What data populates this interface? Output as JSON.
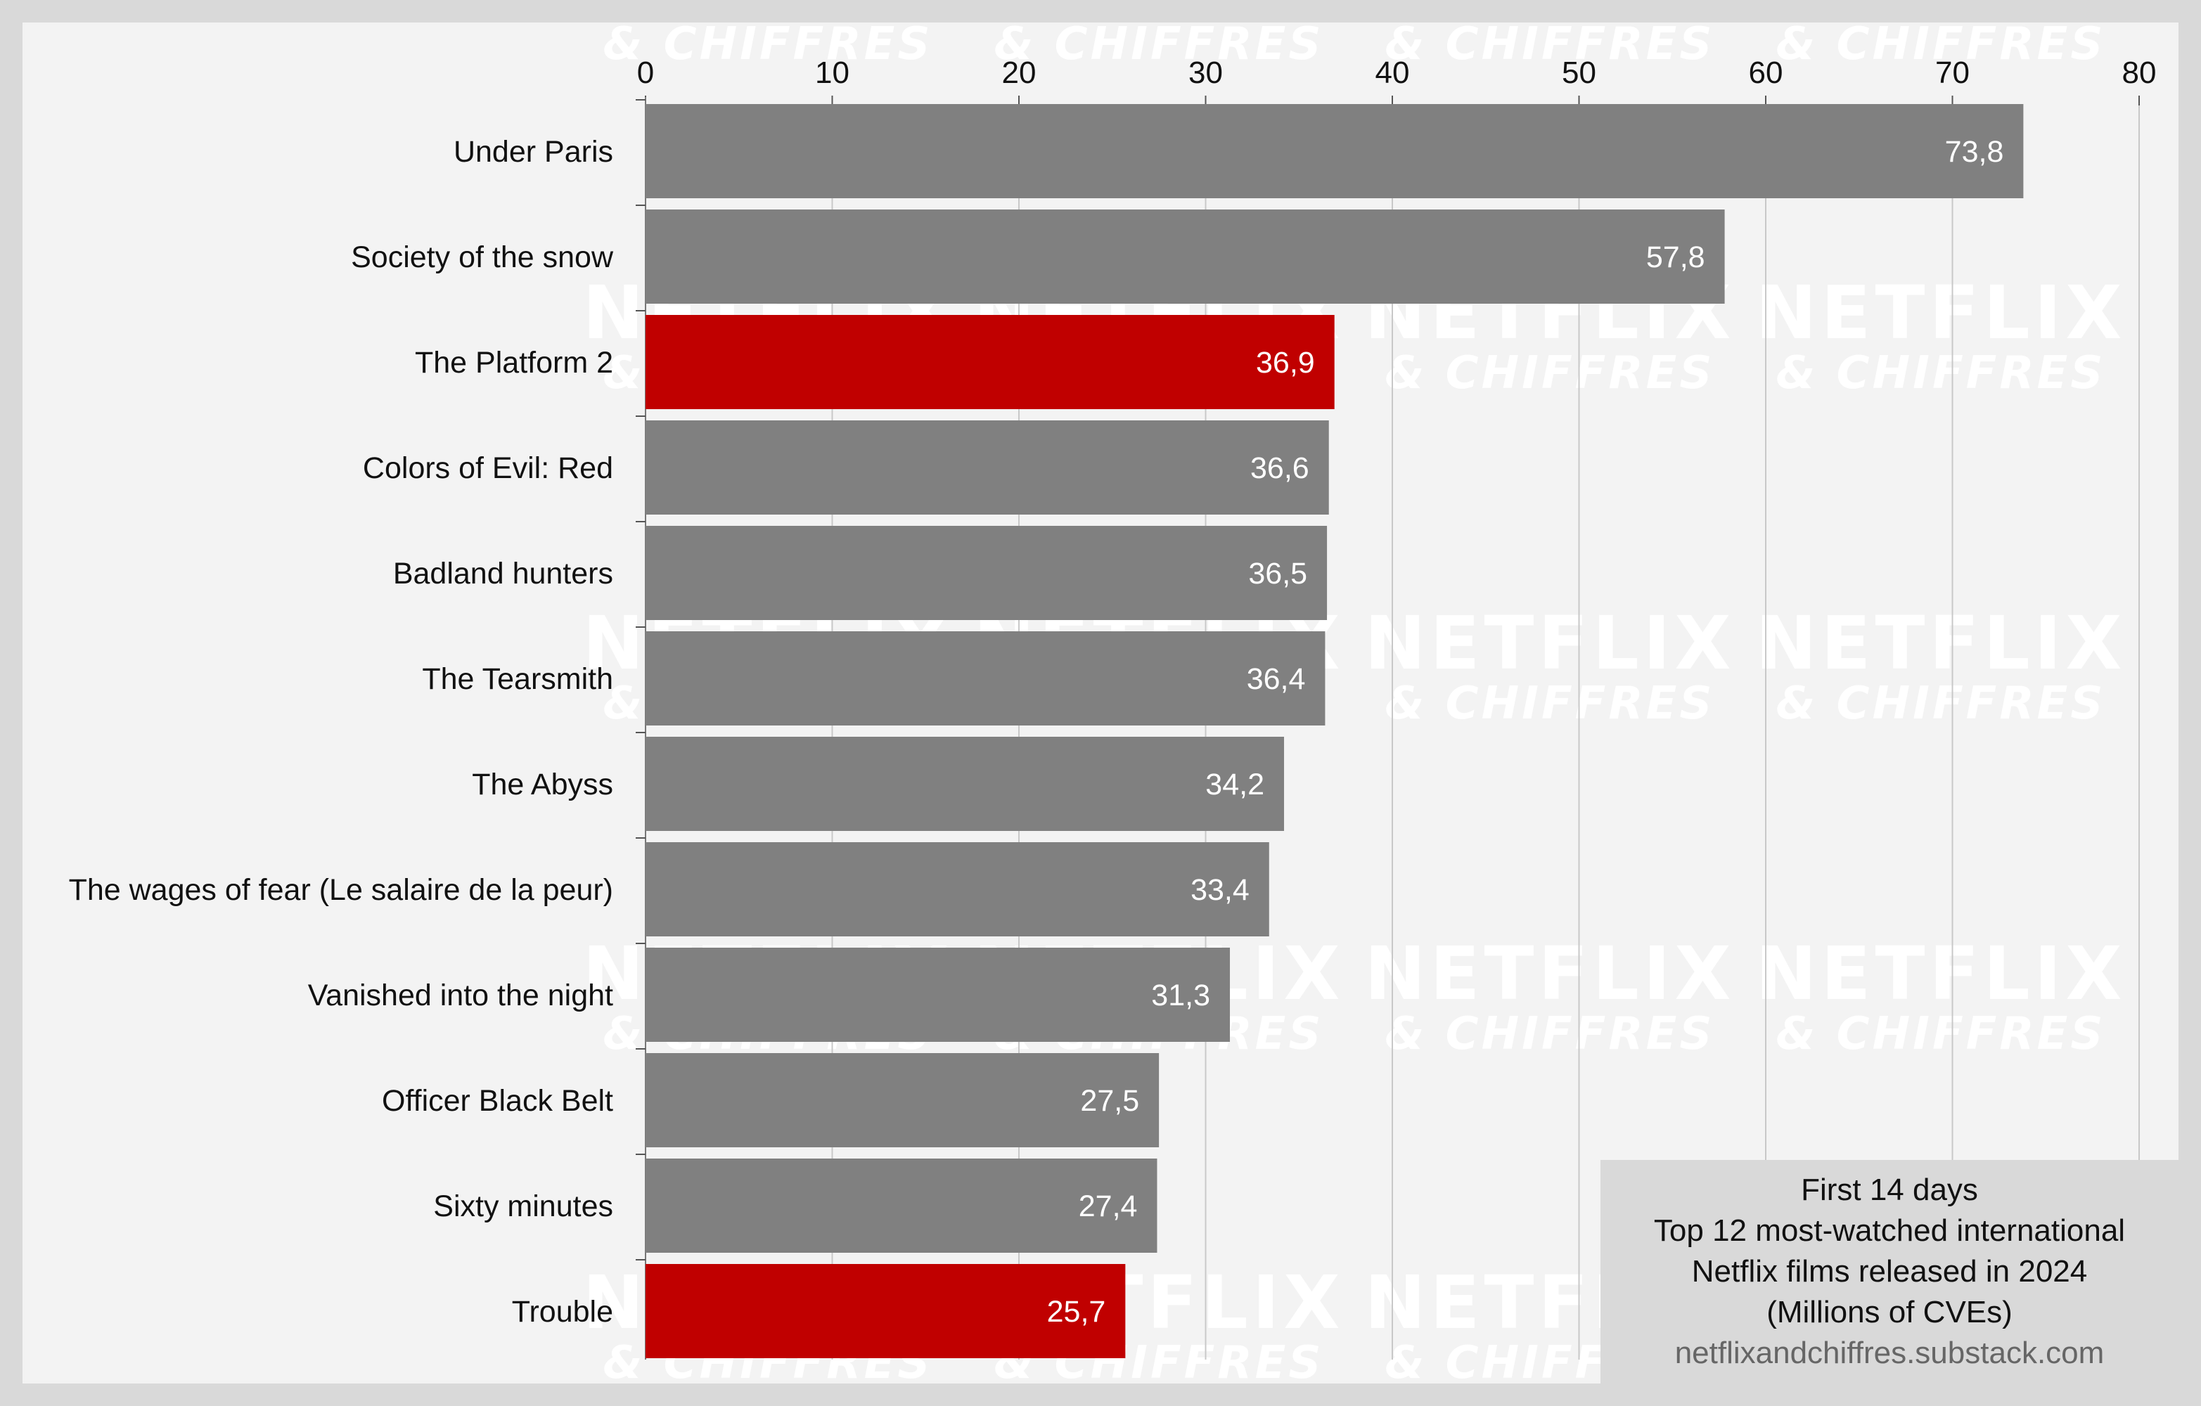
{
  "chart_data": {
    "type": "bar",
    "orientation": "horizontal",
    "categories": [
      "Under Paris",
      "Society of the snow",
      "The Platform 2",
      "Colors of Evil: Red",
      "Badland hunters",
      "The Tearsmith",
      "The Abyss",
      "The wages of fear (Le salaire de la peur)",
      "Vanished into the night",
      "Officer Black Belt",
      "Sixty minutes",
      "Trouble"
    ],
    "values": [
      73.8,
      57.8,
      36.9,
      36.6,
      36.5,
      36.4,
      34.2,
      33.4,
      31.3,
      27.5,
      27.4,
      25.7
    ],
    "value_labels": [
      "73,8",
      "57,8",
      "36,9",
      "36,6",
      "36,5",
      "36,4",
      "34,2",
      "33,4",
      "31,3",
      "27,5",
      "27,4",
      "25,7"
    ],
    "highlighted": [
      false,
      false,
      true,
      false,
      false,
      false,
      false,
      false,
      false,
      false,
      false,
      true
    ],
    "colors": {
      "default": "#808080",
      "highlight": "#c00000"
    },
    "xlim": [
      0,
      80
    ],
    "xticks": [
      0,
      10,
      20,
      30,
      40,
      50,
      60,
      70,
      80
    ],
    "x_axis_position": "top",
    "grid": true,
    "legend": "none"
  },
  "info_box": {
    "lines": [
      "First 14 days",
      "Top 12 most-watched international",
      "Netflix films released in 2024",
      "(Millions of CVEs)"
    ],
    "source": "netflixandchiffres.substack.com"
  },
  "watermark": {
    "top": "NETFLIX",
    "bottom": "& CHIFFRES"
  }
}
